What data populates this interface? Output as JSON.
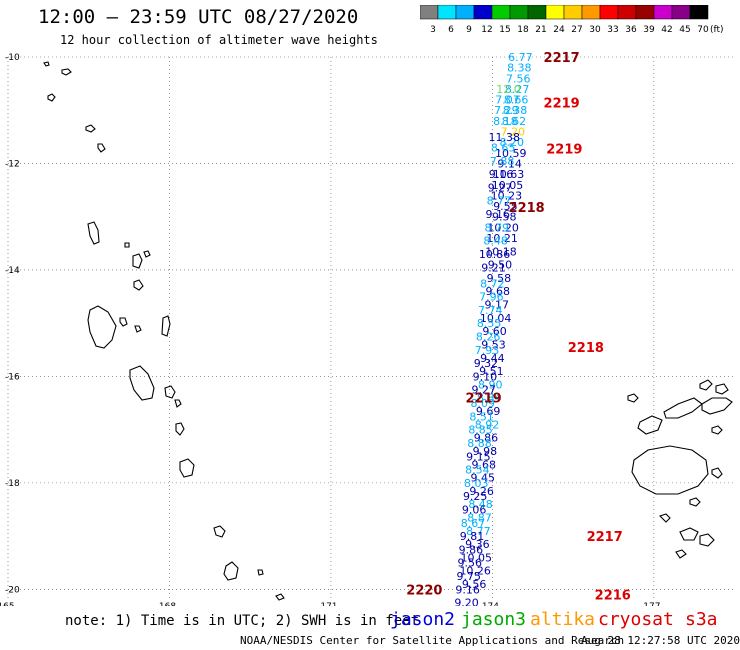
{
  "header": {
    "title": "12:00 – 23:59 UTC 08/27/2020",
    "subtitle": "12 hour collection of altimeter wave heights"
  },
  "color_scale": {
    "unit": "(ft)",
    "bins": [
      {
        "label": "3",
        "color": "#808080"
      },
      {
        "label": "6",
        "color": "#00e5ff"
      },
      {
        "label": "9",
        "color": "#00b0ff"
      },
      {
        "label": "12",
        "color": "#0000cc"
      },
      {
        "label": "15",
        "color": "#00cc00"
      },
      {
        "label": "18",
        "color": "#009900"
      },
      {
        "label": "21",
        "color": "#006600"
      },
      {
        "label": "24",
        "color": "#ffff00"
      },
      {
        "label": "27",
        "color": "#ffcc00"
      },
      {
        "label": "30",
        "color": "#ff9900"
      },
      {
        "label": "33",
        "color": "#ff0000"
      },
      {
        "label": "36",
        "color": "#cc0000"
      },
      {
        "label": "39",
        "color": "#990000"
      },
      {
        "label": "42",
        "color": "#cc00cc"
      },
      {
        "label": "45",
        "color": "#880088"
      },
      {
        "label": "70",
        "color": "#000000"
      }
    ]
  },
  "map": {
    "lat_labels": [
      "-10",
      "-12",
      "-14",
      "-16",
      "-18",
      "-20"
    ],
    "lon_labels": [
      "165",
      "168",
      "171",
      "174",
      "177"
    ],
    "lon_range": [
      165,
      178.6
    ],
    "lat_range": [
      -10,
      -20.2
    ],
    "pass_labels": [
      {
        "text": "2217",
        "color": "#8b0000",
        "lon": 174.95,
        "lat": -10.0
      },
      {
        "text": "2219",
        "color": "#dd0000",
        "lon": 174.95,
        "lat": -10.85
      },
      {
        "text": "2219",
        "color": "#dd0000",
        "lon": 175.0,
        "lat": -11.72
      },
      {
        "text": "2218",
        "color": "#8b0000",
        "lon": 174.3,
        "lat": -12.82
      },
      {
        "text": "2218",
        "color": "#dd0000",
        "lon": 175.4,
        "lat": -15.45
      },
      {
        "text": "2219",
        "color": "#8b0000",
        "lon": 173.5,
        "lat": -16.4
      },
      {
        "text": "2217",
        "color": "#dd0000",
        "lon": 175.75,
        "lat": -19.0
      },
      {
        "text": "2220",
        "color": "#8b0000",
        "lon": 172.4,
        "lat": -20.0
      },
      {
        "text": "2216",
        "color": "#dd0000",
        "lon": 175.9,
        "lat": -20.1
      }
    ],
    "tracks": [
      {
        "name": "descending-track",
        "points": [
          {
            "lon": 174.52,
            "lat": -10.0,
            "v": "6.77",
            "c": "#00b0ff"
          },
          {
            "lon": 174.5,
            "lat": -10.2,
            "v": "8.38",
            "c": "#00b0ff"
          },
          {
            "lon": 174.48,
            "lat": -10.4,
            "v": "7.56",
            "c": "#00b0ff"
          },
          {
            "lon": 174.46,
            "lat": -10.6,
            "v": "8.27",
            "c": "#00b0ff"
          },
          {
            "lon": 174.44,
            "lat": -10.8,
            "v": "8.66",
            "c": "#00b0ff"
          },
          {
            "lon": 174.42,
            "lat": -11.0,
            "v": "8.38",
            "c": "#00b0ff"
          },
          {
            "lon": 174.4,
            "lat": -11.2,
            "v": "8.62",
            "c": "#00b0ff"
          },
          {
            "lon": 174.38,
            "lat": -11.4,
            "v": "7.20",
            "c": "#ffcc00"
          },
          {
            "lon": 174.36,
            "lat": -11.6,
            "v": "8.20",
            "c": "#00b0ff"
          },
          {
            "lon": 174.34,
            "lat": -11.8,
            "v": "10.59",
            "c": "#0000aa"
          },
          {
            "lon": 174.32,
            "lat": -12.0,
            "v": "9.14",
            "c": "#0000aa"
          },
          {
            "lon": 174.3,
            "lat": -12.2,
            "v": "10.63",
            "c": "#0000aa"
          },
          {
            "lon": 174.28,
            "lat": -12.4,
            "v": "10.05",
            "c": "#0000aa"
          },
          {
            "lon": 174.26,
            "lat": -12.6,
            "v": "10.23",
            "c": "#0000aa"
          },
          {
            "lon": 174.24,
            "lat": -12.8,
            "v": "9.55",
            "c": "#0000aa"
          },
          {
            "lon": 174.22,
            "lat": -13.0,
            "v": "9.58",
            "c": "#0000aa"
          },
          {
            "lon": 174.2,
            "lat": -13.2,
            "v": "10.20",
            "c": "#0000aa"
          },
          {
            "lon": 174.18,
            "lat": -13.4,
            "v": "10.21",
            "c": "#0000aa"
          },
          {
            "lon": 174.16,
            "lat": -13.65,
            "v": "10.18",
            "c": "#0000aa"
          },
          {
            "lon": 174.14,
            "lat": -13.9,
            "v": "9.50",
            "c": "#0000aa"
          },
          {
            "lon": 174.12,
            "lat": -14.15,
            "v": "9.58",
            "c": "#0000aa"
          },
          {
            "lon": 174.1,
            "lat": -14.4,
            "v": "9.68",
            "c": "#0000aa"
          },
          {
            "lon": 174.08,
            "lat": -14.65,
            "v": "9.17",
            "c": "#0000aa"
          },
          {
            "lon": 174.06,
            "lat": -14.9,
            "v": "10.04",
            "c": "#0000aa"
          },
          {
            "lon": 174.04,
            "lat": -15.15,
            "v": "9.60",
            "c": "#0000aa"
          },
          {
            "lon": 174.02,
            "lat": -15.4,
            "v": "9.53",
            "c": "#0000aa"
          },
          {
            "lon": 174.0,
            "lat": -15.65,
            "v": "9.44",
            "c": "#0000aa"
          },
          {
            "lon": 173.98,
            "lat": -15.9,
            "v": "9.51",
            "c": "#0000aa"
          },
          {
            "lon": 173.96,
            "lat": -16.15,
            "v": "8.90",
            "c": "#00b0ff"
          },
          {
            "lon": 173.94,
            "lat": -16.4,
            "v": "8.84",
            "c": "#00b0ff"
          },
          {
            "lon": 173.92,
            "lat": -16.65,
            "v": "9.69",
            "c": "#0000aa"
          },
          {
            "lon": 173.9,
            "lat": -16.9,
            "v": "8.92",
            "c": "#00b0ff"
          },
          {
            "lon": 173.88,
            "lat": -17.15,
            "v": "9.86",
            "c": "#0000aa"
          },
          {
            "lon": 173.86,
            "lat": -17.4,
            "v": "9.98",
            "c": "#0000aa"
          },
          {
            "lon": 173.84,
            "lat": -17.65,
            "v": "9.68",
            "c": "#0000aa"
          },
          {
            "lon": 173.82,
            "lat": -17.9,
            "v": "9.45",
            "c": "#0000aa"
          },
          {
            "lon": 173.8,
            "lat": -18.15,
            "v": "9.26",
            "c": "#0000aa"
          },
          {
            "lon": 173.78,
            "lat": -18.4,
            "v": "8.48",
            "c": "#00b0ff"
          },
          {
            "lon": 173.76,
            "lat": -18.65,
            "v": "8.87",
            "c": "#00b0ff"
          },
          {
            "lon": 173.74,
            "lat": -18.9,
            "v": "8.77",
            "c": "#00b0ff"
          },
          {
            "lon": 173.72,
            "lat": -19.15,
            "v": "9.36",
            "c": "#0000aa"
          },
          {
            "lon": 173.7,
            "lat": -19.4,
            "v": "10.05",
            "c": "#0000aa"
          },
          {
            "lon": 173.68,
            "lat": -19.65,
            "v": "10.26",
            "c": "#0000aa"
          },
          {
            "lon": 173.66,
            "lat": -19.9,
            "v": "9.56",
            "c": "#0000aa"
          }
        ]
      },
      {
        "name": "ascending-track",
        "points": [
          {
            "lon": 174.3,
            "lat": -10.6,
            "v": "12.0",
            "c": "#66dd66"
          },
          {
            "lon": 174.28,
            "lat": -10.8,
            "v": "7.07",
            "c": "#00b0ff"
          },
          {
            "lon": 174.26,
            "lat": -11.0,
            "v": "7.29",
            "c": "#00b0ff"
          },
          {
            "lon": 174.24,
            "lat": -11.2,
            "v": "8.18",
            "c": "#00b0ff"
          },
          {
            "lon": 174.22,
            "lat": -11.5,
            "v": "11.38",
            "c": "#0000aa"
          },
          {
            "lon": 174.2,
            "lat": -11.7,
            "v": "8.65",
            "c": "#00b0ff"
          },
          {
            "lon": 174.18,
            "lat": -11.95,
            "v": "7.88",
            "c": "#00b0ff"
          },
          {
            "lon": 174.16,
            "lat": -12.2,
            "v": "9.16",
            "c": "#0000aa"
          },
          {
            "lon": 174.14,
            "lat": -12.45,
            "v": "9.27",
            "c": "#0000aa"
          },
          {
            "lon": 174.12,
            "lat": -12.7,
            "v": "8.77",
            "c": "#00b0ff"
          },
          {
            "lon": 174.1,
            "lat": -12.95,
            "v": "9.16",
            "c": "#0000aa"
          },
          {
            "lon": 174.08,
            "lat": -13.2,
            "v": "8.79",
            "c": "#00b0ff"
          },
          {
            "lon": 174.06,
            "lat": -13.45,
            "v": "8.48",
            "c": "#00b0ff"
          },
          {
            "lon": 174.04,
            "lat": -13.7,
            "v": "10.86",
            "c": "#0000aa"
          },
          {
            "lon": 174.02,
            "lat": -13.95,
            "v": "9.21",
            "c": "#0000aa"
          },
          {
            "lon": 174.0,
            "lat": -14.25,
            "v": "8.72",
            "c": "#00b0ff"
          },
          {
            "lon": 173.98,
            "lat": -14.5,
            "v": "7.96",
            "c": "#00b0ff"
          },
          {
            "lon": 173.96,
            "lat": -14.75,
            "v": "7.74",
            "c": "#00b0ff"
          },
          {
            "lon": 173.94,
            "lat": -15.0,
            "v": "8.55",
            "c": "#00b0ff"
          },
          {
            "lon": 173.92,
            "lat": -15.25,
            "v": "8.26",
            "c": "#00b0ff"
          },
          {
            "lon": 173.9,
            "lat": -15.5,
            "v": "7.93",
            "c": "#00b0ff"
          },
          {
            "lon": 173.88,
            "lat": -15.75,
            "v": "9.32",
            "c": "#0000aa"
          },
          {
            "lon": 173.86,
            "lat": -16.0,
            "v": "9.10",
            "c": "#0000aa"
          },
          {
            "lon": 173.84,
            "lat": -16.25,
            "v": "9.27",
            "c": "#0000aa"
          },
          {
            "lon": 173.82,
            "lat": -16.5,
            "v": "8.09",
            "c": "#00b0ff"
          },
          {
            "lon": 173.8,
            "lat": -16.75,
            "v": "8.51",
            "c": "#00b0ff"
          },
          {
            "lon": 173.78,
            "lat": -17.0,
            "v": "8.85",
            "c": "#00b0ff"
          },
          {
            "lon": 173.76,
            "lat": -17.25,
            "v": "8.88",
            "c": "#00b0ff"
          },
          {
            "lon": 173.74,
            "lat": -17.5,
            "v": "9.15",
            "c": "#0000aa"
          },
          {
            "lon": 173.72,
            "lat": -17.75,
            "v": "8.54",
            "c": "#00b0ff"
          },
          {
            "lon": 173.7,
            "lat": -18.0,
            "v": "8.03",
            "c": "#00b0ff"
          },
          {
            "lon": 173.68,
            "lat": -18.25,
            "v": "9.25",
            "c": "#0000aa"
          },
          {
            "lon": 173.66,
            "lat": -18.5,
            "v": "9.06",
            "c": "#0000aa"
          },
          {
            "lon": 173.64,
            "lat": -18.75,
            "v": "8.67",
            "c": "#00b0ff"
          },
          {
            "lon": 173.62,
            "lat": -19.0,
            "v": "9.81",
            "c": "#0000aa"
          },
          {
            "lon": 173.6,
            "lat": -19.25,
            "v": "9.86",
            "c": "#0000aa"
          },
          {
            "lon": 173.58,
            "lat": -19.5,
            "v": "9.56",
            "c": "#0000aa"
          },
          {
            "lon": 173.56,
            "lat": -19.75,
            "v": "9.75",
            "c": "#0000aa"
          },
          {
            "lon": 173.54,
            "lat": -20.0,
            "v": "9.16",
            "c": "#0000aa"
          },
          {
            "lon": 173.52,
            "lat": -20.25,
            "v": "9.20",
            "c": "#0000aa"
          }
        ]
      }
    ]
  },
  "footer": {
    "note": "note: 1) Time is in UTC; 2) SWH is in feet",
    "satellites": [
      {
        "name": "jason2",
        "color": "#0000dd"
      },
      {
        "name": "jason3",
        "color": "#00aa00"
      },
      {
        "name": "altika",
        "color": "#ff9900"
      },
      {
        "name": "cryosat",
        "color": "#dd0000"
      },
      {
        "name": "s3a",
        "color": "#dd0000"
      }
    ],
    "credit": "NOAA/NESDIS Center for Satellite Applications and Research",
    "timestamp": "Aug 28 12:27:58 UTC 2020"
  }
}
